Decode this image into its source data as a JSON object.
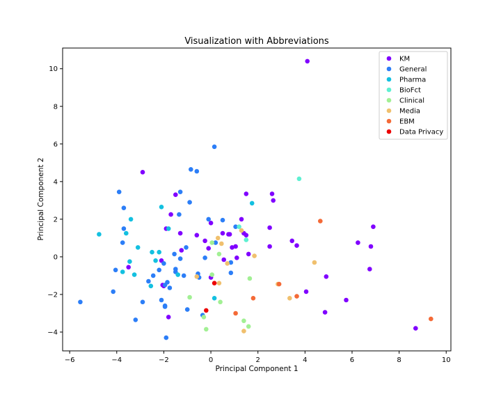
{
  "chart_data": {
    "type": "scatter",
    "title": "Visualization with Abbreviations",
    "xlabel": "Principal Component 1",
    "ylabel": "Principal Component 2",
    "xlim": [
      -6.3,
      10.2
    ],
    "ylim": [
      -5.0,
      11.1
    ],
    "xticks": [
      -6,
      -4,
      -2,
      0,
      2,
      4,
      6,
      8,
      10
    ],
    "yticks": [
      -4,
      -2,
      0,
      2,
      4,
      6,
      8,
      10
    ],
    "grid": false,
    "legend_position": "top-right",
    "series": [
      {
        "name": "KM",
        "color": "#8000ff",
        "points": [
          [
            4.1,
            10.4
          ],
          [
            -2.9,
            4.5
          ],
          [
            -1.5,
            3.3
          ],
          [
            2.6,
            3.35
          ],
          [
            1.5,
            3.35
          ],
          [
            2.65,
            3.0
          ],
          [
            -1.7,
            2.25
          ],
          [
            -1.9,
            1.5
          ],
          [
            -1.3,
            1.25
          ],
          [
            -0.6,
            1.15
          ],
          [
            0.0,
            1.8
          ],
          [
            1.3,
            2.0
          ],
          [
            2.5,
            1.55
          ],
          [
            1.4,
            1.25
          ],
          [
            0.5,
            1.25
          ],
          [
            0.75,
            1.2
          ],
          [
            1.5,
            1.15
          ],
          [
            -0.25,
            0.85
          ],
          [
            0.9,
            0.5
          ],
          [
            1.05,
            0.55
          ],
          [
            -0.1,
            0.45
          ],
          [
            -1.25,
            0.35
          ],
          [
            -3.5,
            -0.55
          ],
          [
            -2.1,
            -0.2
          ],
          [
            0.55,
            -0.15
          ],
          [
            1.1,
            -0.05
          ],
          [
            1.6,
            0.15
          ],
          [
            3.45,
            0.85
          ],
          [
            3.65,
            0.6
          ],
          [
            2.5,
            0.55
          ],
          [
            -2.05,
            -1.5
          ],
          [
            -0.0,
            -1.1
          ],
          [
            -1.8,
            -3.2
          ],
          [
            4.05,
            -1.85
          ],
          [
            4.9,
            -1.05
          ],
          [
            4.85,
            -2.95
          ],
          [
            5.75,
            -2.3
          ],
          [
            6.25,
            0.75
          ],
          [
            6.9,
            1.6
          ],
          [
            6.8,
            0.55
          ],
          [
            6.75,
            -0.65
          ],
          [
            8.7,
            -3.8
          ],
          [
            0.8,
            1.2
          ],
          [
            -2.0,
            -1.55
          ]
        ]
      },
      {
        "name": "General",
        "color": "#2c7ef7",
        "points": [
          [
            0.15,
            5.85
          ],
          [
            -0.85,
            4.65
          ],
          [
            -0.6,
            4.55
          ],
          [
            -3.9,
            3.45
          ],
          [
            -1.3,
            3.45
          ],
          [
            -0.9,
            2.9
          ],
          [
            -3.7,
            2.6
          ],
          [
            -1.35,
            2.25
          ],
          [
            -0.1,
            2.0
          ],
          [
            0.5,
            1.95
          ],
          [
            -3.7,
            1.5
          ],
          [
            -1.05,
            0.5
          ],
          [
            0.2,
            0.75
          ],
          [
            1.05,
            1.6
          ],
          [
            -3.75,
            0.75
          ],
          [
            -1.55,
            0.15
          ],
          [
            -1.3,
            -0.1
          ],
          [
            -0.25,
            -0.05
          ],
          [
            -4.05,
            -0.7
          ],
          [
            -2.2,
            -0.7
          ],
          [
            -1.5,
            -0.8
          ],
          [
            -1.5,
            -0.65
          ],
          [
            -1.15,
            -1.0
          ],
          [
            -0.55,
            -0.9
          ],
          [
            -0.5,
            -1.1
          ],
          [
            0.85,
            -0.85
          ],
          [
            0.85,
            -0.3
          ],
          [
            -2.45,
            -1.0
          ],
          [
            -2.65,
            -1.3
          ],
          [
            -1.95,
            -1.5
          ],
          [
            -1.85,
            -1.35
          ],
          [
            -1.75,
            -1.65
          ],
          [
            -4.15,
            -1.85
          ],
          [
            -2.1,
            -2.3
          ],
          [
            -1.95,
            -2.6
          ],
          [
            -1.95,
            -2.65
          ],
          [
            -1.0,
            -2.8
          ],
          [
            -2.9,
            -2.4
          ],
          [
            -3.2,
            -3.35
          ],
          [
            -5.55,
            -2.4
          ],
          [
            -0.35,
            -3.1
          ],
          [
            -1.9,
            -4.3
          ],
          [
            -2.0,
            -0.35
          ]
        ]
      },
      {
        "name": "Pharma",
        "color": "#13c0e0",
        "points": [
          [
            -2.1,
            2.65
          ],
          [
            -4.75,
            1.2
          ],
          [
            -3.4,
            2.0
          ],
          [
            -1.8,
            1.5
          ],
          [
            1.75,
            2.85
          ],
          [
            -3.6,
            1.25
          ],
          [
            -3.1,
            0.5
          ],
          [
            -2.5,
            0.25
          ],
          [
            -2.2,
            0.25
          ],
          [
            -3.45,
            -0.25
          ],
          [
            -2.35,
            -0.2
          ],
          [
            -3.75,
            -0.8
          ],
          [
            -3.25,
            -0.95
          ],
          [
            -1.4,
            -0.95
          ],
          [
            -2.55,
            -1.55
          ],
          [
            0.15,
            -2.2
          ]
        ]
      },
      {
        "name": "BioFct",
        "color": "#5ef0d2",
        "points": [
          [
            3.75,
            4.15
          ],
          [
            1.2,
            1.6
          ],
          [
            1.5,
            0.9
          ]
        ]
      },
      {
        "name": "Clinical",
        "color": "#a2f094",
        "points": [
          [
            0.05,
            0.75
          ],
          [
            0.35,
            0.15
          ],
          [
            0.05,
            -0.95
          ],
          [
            -0.9,
            -2.15
          ],
          [
            0.4,
            -2.4
          ],
          [
            1.65,
            -1.15
          ],
          [
            1.4,
            -3.4
          ],
          [
            1.6,
            -3.7
          ],
          [
            -0.2,
            -3.85
          ],
          [
            -0.3,
            -3.2
          ]
        ]
      },
      {
        "name": "Media",
        "color": "#f0c06e",
        "points": [
          [
            0.3,
            1.0
          ],
          [
            0.45,
            0.7
          ],
          [
            1.3,
            1.4
          ],
          [
            0.7,
            -0.35
          ],
          [
            1.85,
            0.05
          ],
          [
            4.4,
            -0.3
          ],
          [
            -0.6,
            -1.05
          ],
          [
            0.35,
            -1.4
          ],
          [
            2.85,
            -1.45
          ],
          [
            3.35,
            -2.2
          ],
          [
            1.4,
            -3.95
          ]
        ]
      },
      {
        "name": "EBM",
        "color": "#f46a37",
        "points": [
          [
            4.65,
            1.9
          ],
          [
            1.8,
            -2.2
          ],
          [
            3.65,
            -2.1
          ],
          [
            1.05,
            -3.0
          ],
          [
            9.35,
            -3.3
          ],
          [
            2.9,
            -1.45
          ]
        ]
      },
      {
        "name": "Data Privacy",
        "color": "#ec0000",
        "points": [
          [
            0.15,
            -1.4
          ],
          [
            -0.2,
            -2.85
          ]
        ]
      }
    ]
  }
}
